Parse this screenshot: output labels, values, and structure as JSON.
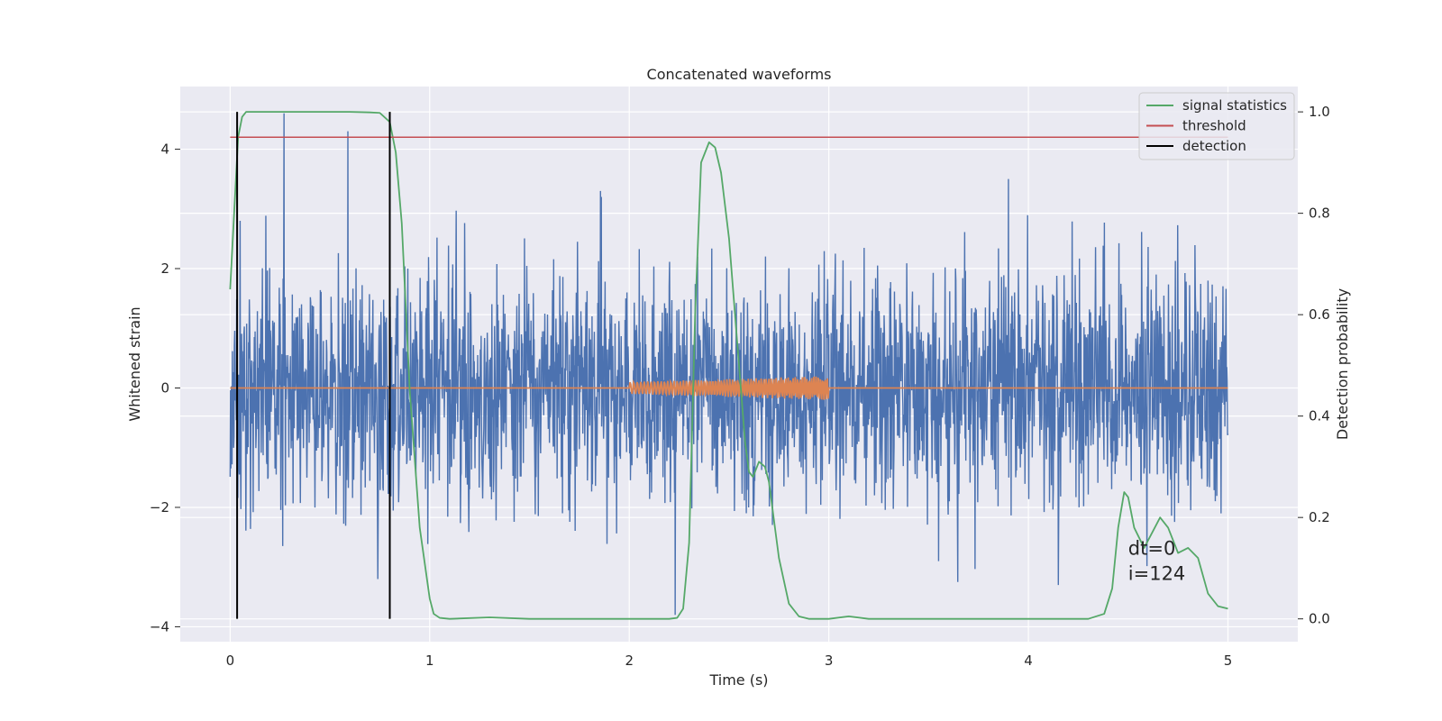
{
  "chart_data": {
    "type": "line",
    "title": "Concatenated waveforms",
    "xlabel": "Time (s)",
    "ylabel": "Whitened strain",
    "ylabel_right": "Detection probability",
    "xlim": [
      -0.25,
      5.35
    ],
    "ylim": [
      -4.25,
      5.05
    ],
    "ylim_right": [
      -0.045,
      1.05
    ],
    "xticks": [
      0,
      1,
      2,
      3,
      4,
      5
    ],
    "xtick_labels": [
      "0",
      "1",
      "2",
      "3",
      "4",
      "5"
    ],
    "yticks": [
      -4,
      -2,
      0,
      2,
      4
    ],
    "ytick_labels": [
      "−4",
      "−2",
      "0",
      "2",
      "4"
    ],
    "yticks_right": [
      0.0,
      0.2,
      0.4,
      0.6,
      0.8,
      1.0
    ],
    "ytick_labels_right": [
      "0.0",
      "0.2",
      "0.4",
      "0.6",
      "0.8",
      "1.0"
    ],
    "grid": true,
    "legend_position": "top-right",
    "legend": [
      {
        "label": "signal statistics",
        "color": "#55a868"
      },
      {
        "label": "threshold",
        "color": "#c44e52"
      },
      {
        "label": "detection",
        "color": "#000000"
      }
    ],
    "series": [
      {
        "axis": "left",
        "color": "#4c72b0",
        "description": "whitened noise strain",
        "x_range": [
          0,
          5
        ],
        "typical_envelope": [
          -1.7,
          1.7
        ],
        "peaks": [
          {
            "x": 0.27,
            "y": 4.6
          },
          {
            "x": 0.59,
            "y": 4.3
          },
          {
            "x": 0.05,
            "y": 2.8
          },
          {
            "x": 1.86,
            "y": 3.2
          },
          {
            "x": 3.9,
            "y": 3.5
          },
          {
            "x": 2.23,
            "y": -3.8
          },
          {
            "x": 0.74,
            "y": -3.2
          },
          {
            "x": 4.15,
            "y": -3.3
          },
          {
            "x": 3.55,
            "y": -2.9
          }
        ]
      },
      {
        "axis": "left",
        "color": "#dd8452",
        "description": "injected waveform",
        "x_range": [
          0,
          5
        ],
        "segment_x": [
          2.0,
          3.0
        ],
        "amplitude_start": 0.1,
        "amplitude_end": 0.2
      },
      {
        "name": "signal statistics",
        "axis": "right",
        "color": "#55a868",
        "x": [
          0.0,
          0.02,
          0.04,
          0.06,
          0.08,
          0.1,
          0.2,
          0.4,
          0.6,
          0.7,
          0.75,
          0.8,
          0.83,
          0.86,
          0.9,
          0.95,
          1.0,
          1.02,
          1.05,
          1.1,
          1.3,
          1.5,
          2.0,
          2.2,
          2.24,
          2.27,
          2.3,
          2.33,
          2.36,
          2.4,
          2.43,
          2.46,
          2.5,
          2.55,
          2.58,
          2.6,
          2.62,
          2.65,
          2.68,
          2.7,
          2.75,
          2.8,
          2.85,
          2.9,
          3.0,
          3.1,
          3.2,
          3.5,
          4.0,
          4.3,
          4.38,
          4.42,
          4.45,
          4.48,
          4.5,
          4.53,
          4.58,
          4.62,
          4.66,
          4.7,
          4.75,
          4.8,
          4.85,
          4.9,
          4.95,
          5.0
        ],
        "y": [
          0.65,
          0.8,
          0.95,
          0.99,
          1.0,
          1.0,
          1.0,
          1.0,
          1.0,
          0.999,
          0.998,
          0.98,
          0.92,
          0.78,
          0.45,
          0.18,
          0.04,
          0.01,
          0.002,
          0.0,
          0.003,
          0.0,
          0.0,
          0.0,
          0.002,
          0.02,
          0.15,
          0.6,
          0.9,
          0.94,
          0.93,
          0.88,
          0.75,
          0.5,
          0.35,
          0.29,
          0.28,
          0.31,
          0.3,
          0.27,
          0.12,
          0.03,
          0.005,
          0.0,
          0.0,
          0.005,
          0.0,
          0.0,
          0.0,
          0.0,
          0.01,
          0.06,
          0.18,
          0.25,
          0.24,
          0.18,
          0.14,
          0.17,
          0.2,
          0.18,
          0.13,
          0.14,
          0.12,
          0.05,
          0.025,
          0.02
        ]
      },
      {
        "name": "threshold",
        "axis": "right",
        "color": "#c44e52",
        "x": [
          0,
          5
        ],
        "y": [
          0.95,
          0.95
        ]
      }
    ],
    "detections": [
      {
        "x": 0.035,
        "y_range": [
          0.0,
          1.0
        ]
      },
      {
        "x": 0.8,
        "y_range": [
          0.0,
          1.0
        ]
      }
    ],
    "annotations": [
      {
        "text_lines": [
          "dt=0",
          "i=124"
        ],
        "x": 4.5,
        "y_right": 0.08
      }
    ]
  }
}
